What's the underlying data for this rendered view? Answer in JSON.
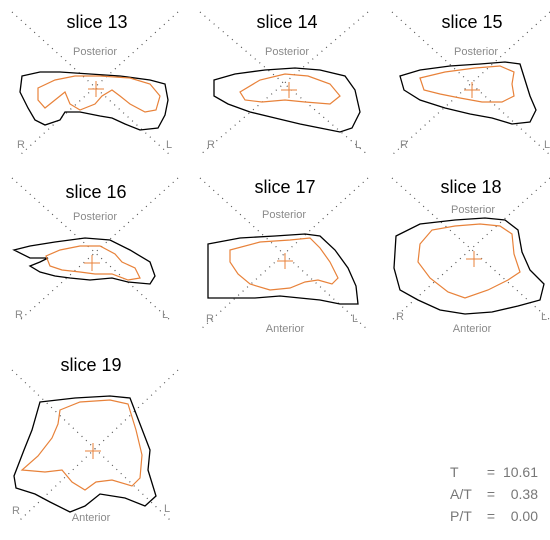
{
  "labels": {
    "posterior": "Posterior",
    "anterior": "Anterior",
    "right": "R",
    "left": "L"
  },
  "slices": [
    {
      "title": "slice 13",
      "show_anterior": false
    },
    {
      "title": "slice 14",
      "show_anterior": false
    },
    {
      "title": "slice 15",
      "show_anterior": false
    },
    {
      "title": "slice 16",
      "show_anterior": false
    },
    {
      "title": "slice 17",
      "show_anterior": true
    },
    {
      "title": "slice 18",
      "show_anterior": true
    },
    {
      "title": "slice 19",
      "show_anterior": true
    }
  ],
  "stats": [
    {
      "label": "T",
      "value": "10.61"
    },
    {
      "label": "A/T",
      "value": "0.38"
    },
    {
      "label": "P/T",
      "value": "0.00"
    }
  ],
  "colors": {
    "outer": "#000000",
    "inner": "#e8823a",
    "text_gray": "#8a8a8a"
  }
}
